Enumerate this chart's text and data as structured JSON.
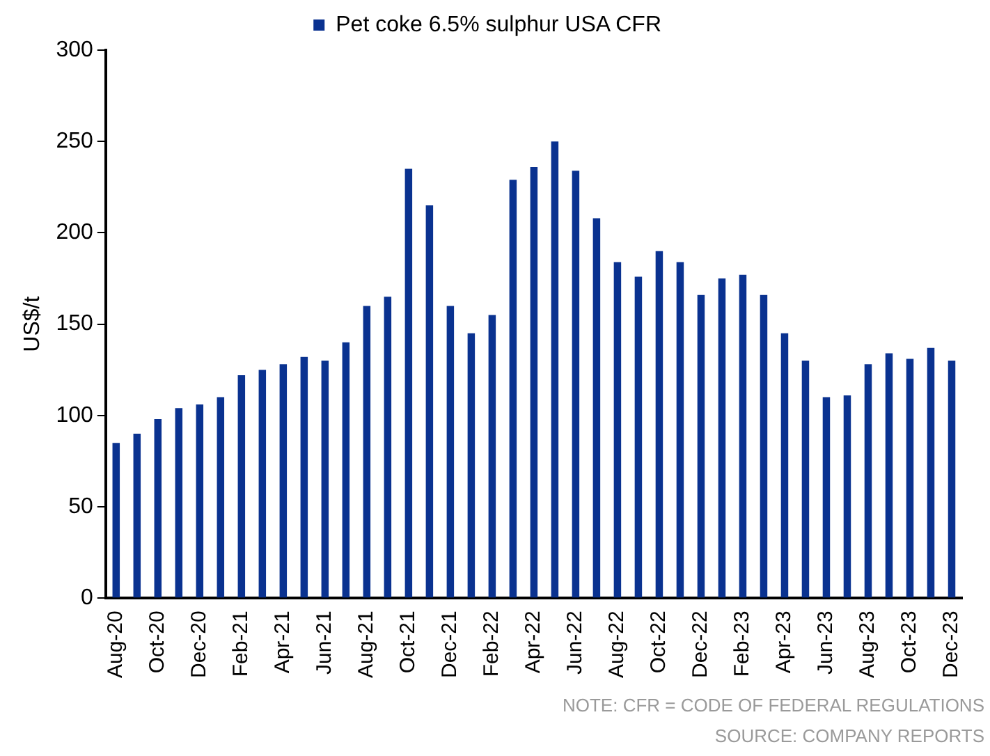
{
  "chart_data": {
    "type": "bar",
    "categories": [
      "Aug-20",
      null,
      "Oct-20",
      null,
      "Dec-20",
      null,
      "Feb-21",
      null,
      "Apr-21",
      null,
      "Jun-21",
      null,
      "Aug-21",
      null,
      "Oct-21",
      null,
      "Dec-21",
      null,
      "Feb-22",
      null,
      "Apr-22",
      null,
      "Jun-22",
      null,
      "Aug-22",
      null,
      "Oct-22",
      null,
      "Dec-22",
      null,
      "Feb-23",
      null,
      "Apr-23",
      null,
      "Jun-23",
      null,
      "Aug-23",
      null,
      "Oct-23",
      null,
      "Dec-23"
    ],
    "series": [
      {
        "name": "Pet coke 6.5% sulphur USA CFR",
        "color": "#0a3290",
        "values": [
          85,
          90,
          98,
          104,
          106,
          110,
          122,
          125,
          128,
          132,
          130,
          140,
          160,
          165,
          235,
          215,
          160,
          145,
          155,
          229,
          236,
          250,
          234,
          208,
          184,
          176,
          190,
          184,
          166,
          175,
          177,
          166,
          145,
          130,
          110,
          111,
          128,
          134,
          131,
          137,
          130
        ]
      }
    ],
    "ylabel": "US$/t",
    "ylim": [
      0,
      300
    ],
    "yticks": [
      0,
      50,
      100,
      150,
      200,
      250,
      300
    ],
    "grid": false,
    "legend": "top",
    "annotations": [
      "NOTE: CFR = CODE OF FEDERAL REGULATIONS",
      "SOURCE: COMPANY REPORTS"
    ]
  }
}
